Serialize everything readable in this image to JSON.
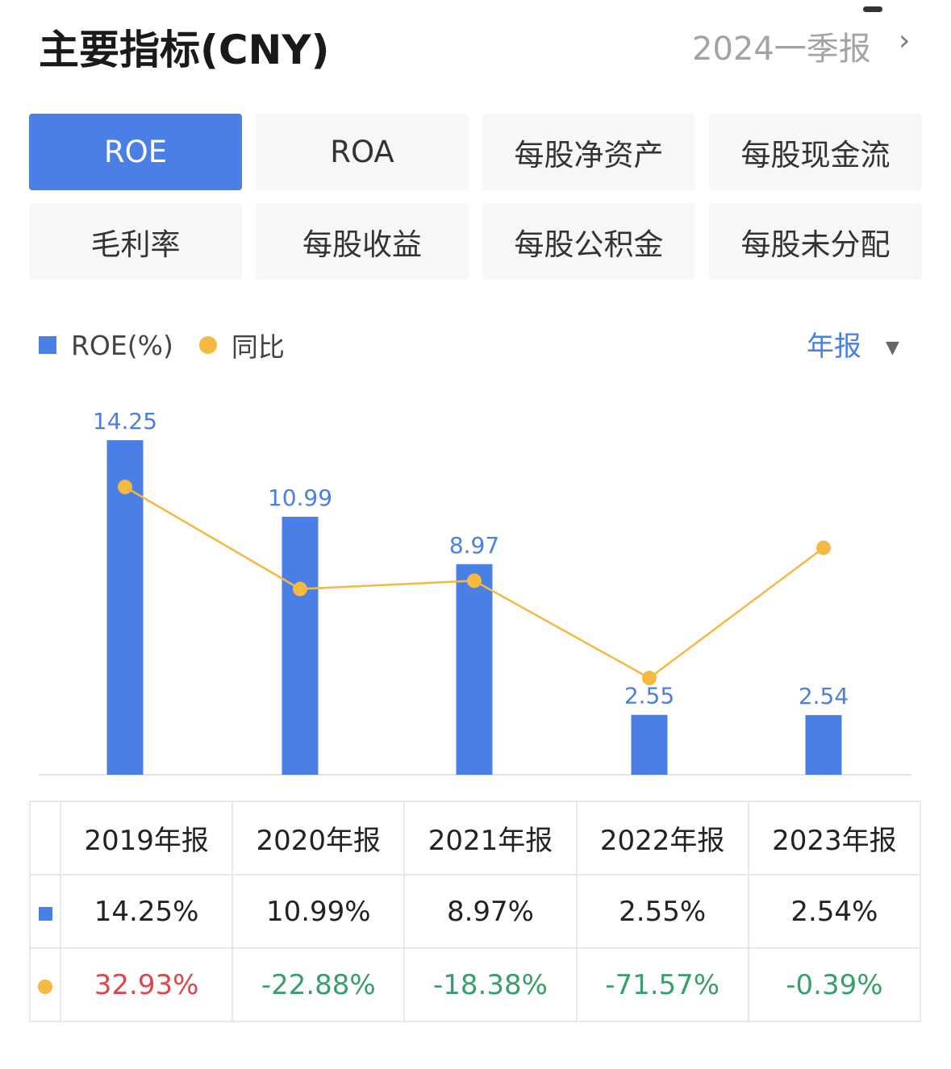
{
  "header": {
    "title": "主要指标(CNY)",
    "period": "2024一季报",
    "chevron": "›"
  },
  "tabs": [
    "ROE",
    "ROA",
    "每股净资产",
    "每股现金流",
    "毛利率",
    "每股收益",
    "每股公积金",
    "每股未分配"
  ],
  "active_tab": "ROE",
  "legend": {
    "bar": "ROE(%)",
    "line": "同比"
  },
  "period_select": {
    "label": "年报",
    "arrow": "▼"
  },
  "colors": {
    "bar": "#4a7fe6",
    "line": "#f5b841",
    "positive": "#d9484c",
    "negative": "#3a9e6a"
  },
  "chart_data": {
    "type": "bar",
    "categories": [
      "2019年报",
      "2020年报",
      "2021年报",
      "2022年报",
      "2023年报"
    ],
    "series": [
      {
        "name": "ROE(%)",
        "type": "bar",
        "values": [
          14.25,
          10.99,
          8.97,
          2.55,
          2.54
        ]
      },
      {
        "name": "同比",
        "type": "line",
        "values": [
          32.93,
          -22.88,
          -18.38,
          -71.57,
          -0.39
        ]
      }
    ]
  },
  "table": {
    "headers": [
      "2019年报",
      "2020年报",
      "2021年报",
      "2022年报",
      "2023年报"
    ],
    "roe_row": [
      "14.25%",
      "10.99%",
      "8.97%",
      "2.55%",
      "2.54%"
    ],
    "yoy_row": [
      "32.93%",
      "-22.88%",
      "-18.38%",
      "-71.57%",
      "-0.39%"
    ]
  }
}
